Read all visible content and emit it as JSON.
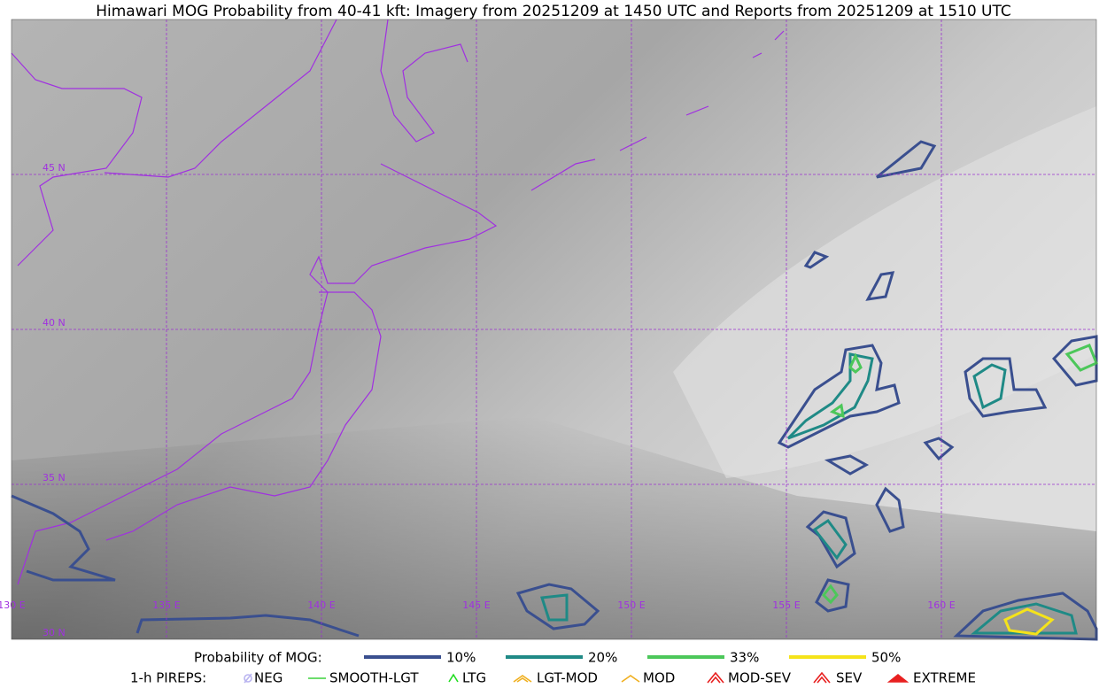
{
  "title": "Himawari MOG Probability from 40-41 kft: Imagery from 20251209 at 1450 UTC and Reports from 20251209 at 1510 UTC",
  "latitude_labels": [
    "45 N",
    "40 N",
    "35 N",
    "30 N"
  ],
  "longitude_labels": [
    "130 E",
    "135 E",
    "140 E",
    "145 E",
    "150 E",
    "155 E",
    "160 E"
  ],
  "legend": {
    "probability": {
      "label": "Probability of MOG:",
      "items": [
        {
          "label": "10%",
          "color": "#3a4f8f"
        },
        {
          "label": "20%",
          "color": "#1f8a86"
        },
        {
          "label": "33%",
          "color": "#4cc75a"
        },
        {
          "label": "50%",
          "color": "#f5e31a"
        }
      ]
    },
    "pireps": {
      "label": "1-h PIREPS:",
      "items": [
        {
          "label": "NEG",
          "color": "#b9b4f0"
        },
        {
          "label": "SMOOTH-LGT",
          "color": "#3cd23c"
        },
        {
          "label": "LTG",
          "color": "#22dd22"
        },
        {
          "label": "LGT-MOD",
          "color": "#f0b020"
        },
        {
          "label": "MOD",
          "color": "#f0b020"
        },
        {
          "label": "MOD-SEV",
          "color": "#e82020"
        },
        {
          "label": "SEV",
          "color": "#e82020"
        },
        {
          "label": "EXTREME",
          "color": "#e82020"
        }
      ]
    }
  }
}
